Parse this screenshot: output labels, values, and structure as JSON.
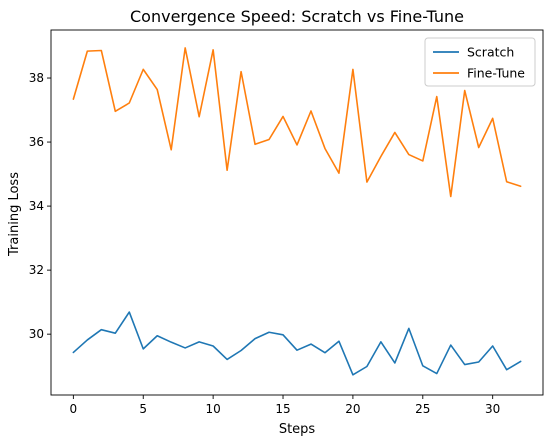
{
  "chart_data": {
    "type": "line",
    "title": "Convergence Speed: Scratch vs Fine-Tune",
    "xlabel": "Steps",
    "ylabel": "Training Loss",
    "xlim": [
      -1.6,
      33.6
    ],
    "ylim": [
      28.1,
      39.5
    ],
    "xticks": [
      0,
      5,
      10,
      15,
      20,
      25,
      30
    ],
    "yticks": [
      30,
      32,
      34,
      36,
      38
    ],
    "grid": false,
    "legend_position": "top-right",
    "x": [
      0,
      1,
      2,
      3,
      4,
      5,
      6,
      7,
      8,
      9,
      10,
      11,
      12,
      13,
      14,
      15,
      16,
      17,
      18,
      19,
      20,
      21,
      22,
      23,
      24,
      25,
      26,
      27,
      28,
      29,
      30,
      31,
      32
    ],
    "series": [
      {
        "name": "Scratch",
        "color": "#1f77b4",
        "values": [
          29.43,
          29.82,
          30.14,
          30.03,
          30.69,
          29.54,
          29.95,
          29.75,
          29.57,
          29.76,
          29.63,
          29.21,
          29.49,
          29.86,
          30.06,
          29.98,
          29.5,
          29.69,
          29.42,
          29.78,
          28.73,
          28.99,
          29.76,
          29.1,
          30.18,
          29.01,
          28.77,
          29.66,
          29.05,
          29.13,
          29.63,
          28.89,
          29.15
        ]
      },
      {
        "name": "Fine-Tune",
        "color": "#ff7f0e",
        "values": [
          37.34,
          38.84,
          38.86,
          36.96,
          37.22,
          38.27,
          37.64,
          35.76,
          38.94,
          36.79,
          38.88,
          35.12,
          38.2,
          35.93,
          36.08,
          36.8,
          35.91,
          36.97,
          35.8,
          35.03,
          38.27,
          34.75,
          35.55,
          36.3,
          35.61,
          35.41,
          37.42,
          34.3,
          37.61,
          35.83,
          36.74,
          34.76,
          34.62
        ]
      }
    ]
  }
}
